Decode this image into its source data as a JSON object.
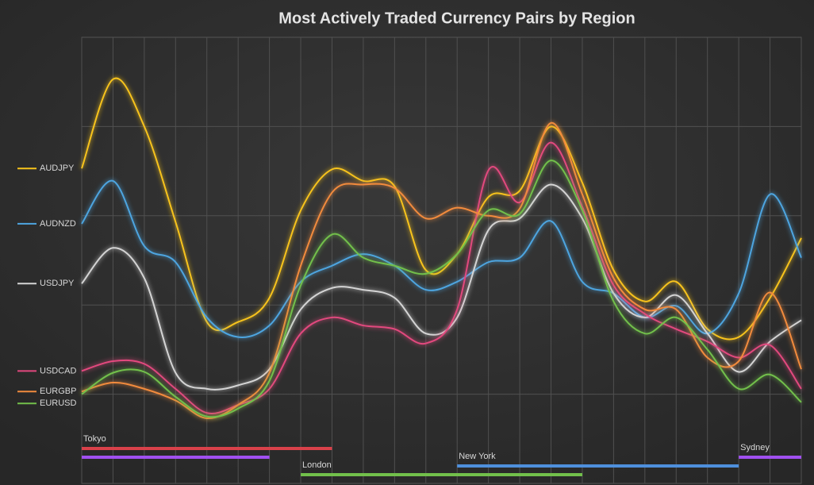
{
  "chart_data": {
    "type": "line",
    "title": "Most Actively Traded Currency Pairs by Region",
    "categories": [
      null,
      null,
      null,
      null,
      null,
      null,
      null,
      null,
      null,
      null,
      null,
      null,
      null,
      null,
      null,
      null,
      null,
      null,
      null,
      null,
      null,
      null,
      null,
      null
    ],
    "ylim": [
      0,
      5
    ],
    "yticks": [
      1,
      2,
      3,
      4
    ],
    "grid": true,
    "series": [
      {
        "name": "AUDJPY",
        "color": "#f7c31b",
        "values": [
          3.53,
          4.53,
          4.0,
          2.93,
          1.81,
          1.81,
          2.08,
          3.06,
          3.52,
          3.39,
          3.33,
          2.39,
          2.57,
          3.21,
          3.28,
          4.0,
          3.37,
          2.39,
          2.04,
          2.26,
          1.73,
          1.64,
          2.08,
          2.75
        ]
      },
      {
        "name": "AUDNZD",
        "color": "#4ea5e0",
        "values": [
          2.91,
          3.39,
          2.66,
          2.48,
          1.86,
          1.64,
          1.77,
          2.26,
          2.44,
          2.57,
          2.44,
          2.17,
          2.26,
          2.48,
          2.53,
          2.94,
          2.26,
          2.13,
          1.86,
          1.99,
          1.68,
          2.13,
          3.24,
          2.53
        ]
      },
      {
        "name": "USDJPY",
        "color": "#d4d4d4",
        "values": [
          2.24,
          2.64,
          2.3,
          1.24,
          1.06,
          1.1,
          1.28,
          1.95,
          2.19,
          2.17,
          2.08,
          1.68,
          1.86,
          2.84,
          2.97,
          3.35,
          2.97,
          2.13,
          1.86,
          2.11,
          1.68,
          1.25,
          1.59,
          1.83
        ]
      },
      {
        "name": "USDCAD",
        "color": "#e2487e",
        "values": [
          1.26,
          1.37,
          1.34,
          1.06,
          0.79,
          0.88,
          1.06,
          1.68,
          1.86,
          1.77,
          1.73,
          1.57,
          1.95,
          3.51,
          3.15,
          3.82,
          3.1,
          2.22,
          1.9,
          1.73,
          1.59,
          1.41,
          1.55,
          1.06
        ]
      },
      {
        "name": "EURGBP",
        "color": "#f28b3d",
        "values": [
          1.03,
          1.13,
          1.06,
          0.93,
          0.73,
          0.88,
          1.24,
          2.44,
          3.26,
          3.35,
          3.31,
          2.97,
          3.09,
          3.0,
          3.08,
          4.04,
          3.24,
          2.3,
          1.95,
          1.95,
          1.41,
          1.37,
          2.14,
          1.28
        ]
      },
      {
        "name": "EURUSD",
        "color": "#72c04b",
        "values": [
          1.0,
          1.24,
          1.25,
          0.97,
          0.75,
          0.84,
          1.15,
          2.22,
          2.79,
          2.53,
          2.44,
          2.35,
          2.57,
          3.06,
          3.02,
          3.62,
          3.06,
          2.04,
          1.68,
          1.86,
          1.5,
          1.06,
          1.22,
          0.91
        ]
      }
    ],
    "sessions": [
      {
        "name": "Tokyo",
        "color": "#d9414a",
        "start": 0,
        "end": 8
      },
      {
        "color": "#a050f0",
        "start": 0,
        "end": 6
      },
      {
        "name": "London",
        "color": "#72c04b",
        "start": 7,
        "end": 16
      },
      {
        "name": "New York",
        "color": "#4e8fdc",
        "start": 12,
        "end": 21
      },
      {
        "name": "Sydney",
        "color": "#a050f0",
        "start": 21,
        "end": 23
      }
    ]
  }
}
